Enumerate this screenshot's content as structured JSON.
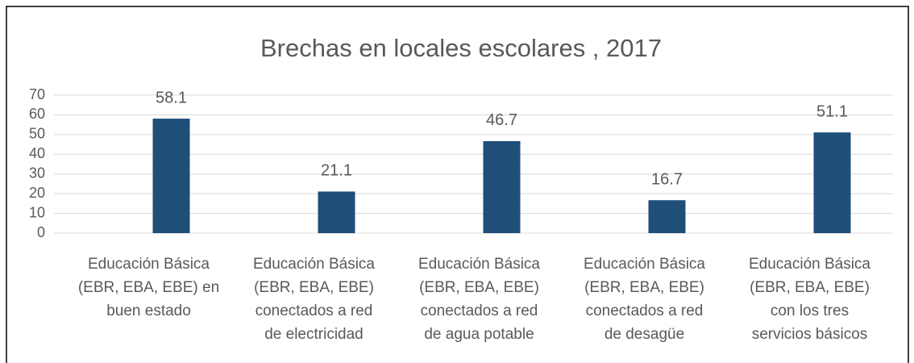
{
  "chart_data": {
    "type": "bar",
    "title": "Brechas en locales escolares , 2017",
    "categories": [
      [
        "Educación Básica",
        "(EBR, EBA, EBE) en",
        "buen estado"
      ],
      [
        "Educación Básica",
        "(EBR, EBA, EBE)",
        "conectados a red",
        "de electricidad"
      ],
      [
        "Educación Básica",
        "(EBR, EBA, EBE)",
        "conectados a red",
        "de agua potable"
      ],
      [
        "Educación Básica",
        "(EBR, EBA, EBE)",
        "conectados a red",
        "de desagüe"
      ],
      [
        "Educación Básica",
        "(EBR, EBA, EBE)",
        "con los tres",
        "servicios básicos"
      ]
    ],
    "values": [
      58.1,
      21.1,
      46.7,
      16.7,
      51.1
    ],
    "color": "#1f4e79",
    "ylim": [
      0,
      70
    ],
    "yticks": [
      0,
      10,
      20,
      30,
      40,
      50,
      60,
      70
    ],
    "grid": true
  }
}
